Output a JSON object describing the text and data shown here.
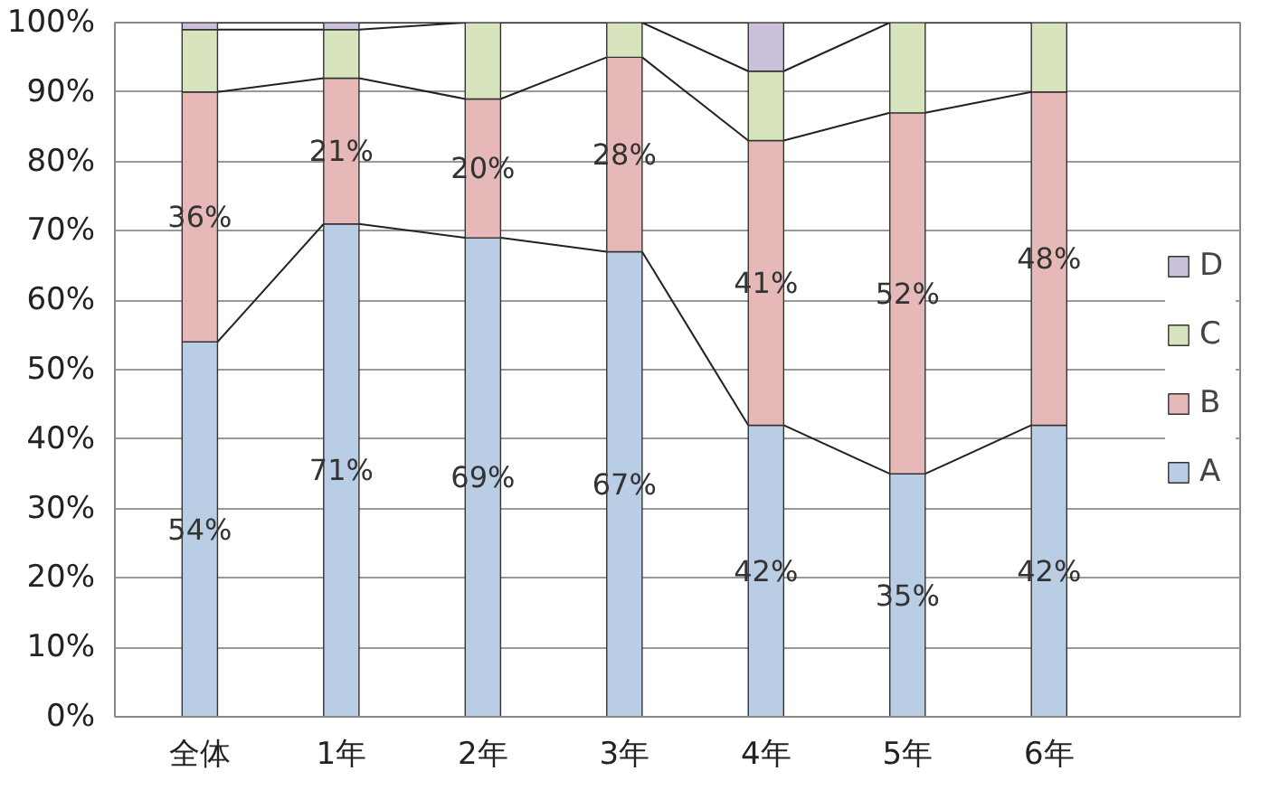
{
  "chart_data": {
    "type": "bar",
    "stacked": true,
    "categories": [
      "全体",
      "1年",
      "2年",
      "3年",
      "4年",
      "5年",
      "6年"
    ],
    "series": [
      {
        "name": "A",
        "color": "#b9cde5",
        "values": [
          54,
          71,
          69,
          67,
          42,
          35,
          42
        ],
        "value_labels": [
          "54%",
          "71%",
          "69%",
          "67%",
          "42%",
          "35%",
          "42%"
        ]
      },
      {
        "name": "B",
        "color": "#e6b9b8",
        "values": [
          36,
          21,
          20,
          28,
          41,
          52,
          48
        ],
        "value_labels": [
          "36%",
          "21%",
          "20%",
          "28%",
          "41%",
          "52%",
          "48%"
        ]
      },
      {
        "name": "C",
        "color": "#d7e4bd",
        "values": [
          9,
          7,
          11,
          5,
          10,
          13,
          10
        ]
      },
      {
        "name": "D",
        "color": "#ccc1da",
        "values": [
          1,
          1,
          0,
          0,
          7,
          0,
          0
        ]
      }
    ],
    "ylim": [
      0,
      100
    ],
    "yticks": [
      {
        "value": 0,
        "label": "0%"
      },
      {
        "value": 10,
        "label": "10%"
      },
      {
        "value": 20,
        "label": "20%"
      },
      {
        "value": 30,
        "label": "30%"
      },
      {
        "value": 40,
        "label": "40%"
      },
      {
        "value": 50,
        "label": "50%"
      },
      {
        "value": 60,
        "label": "60%"
      },
      {
        "value": 70,
        "label": "70%"
      },
      {
        "value": 80,
        "label": "80%"
      },
      {
        "value": 90,
        "label": "90%"
      },
      {
        "value": 100,
        "label": "100%"
      }
    ],
    "grid": "y",
    "legend": "right"
  }
}
